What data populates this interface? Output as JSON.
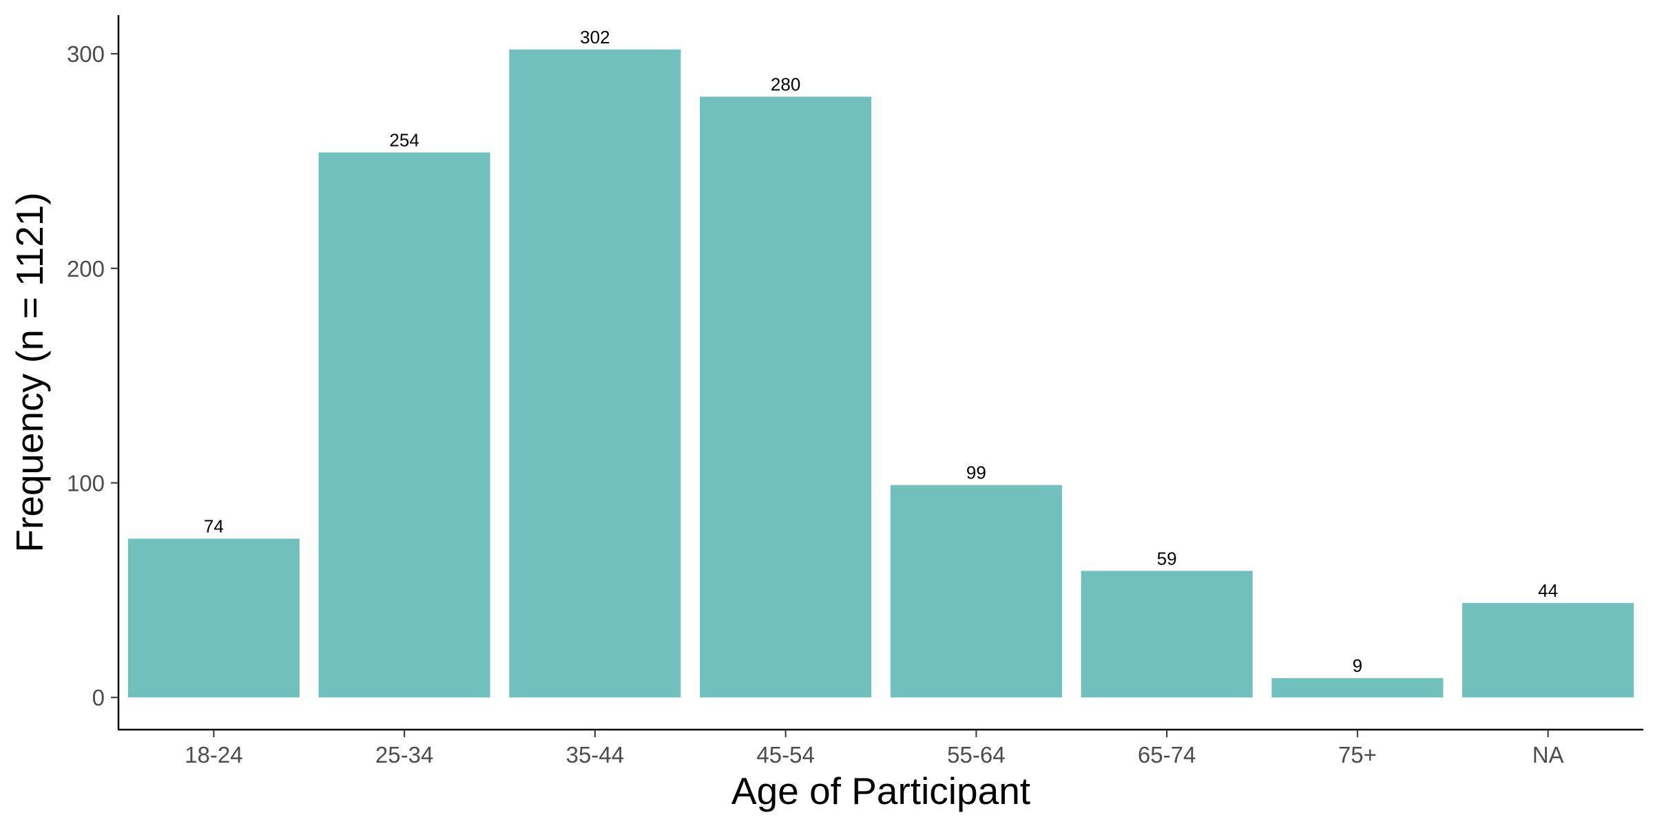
{
  "chart_data": {
    "type": "bar",
    "title": "",
    "xlabel": "Age of Participant",
    "ylabel": "Frequency (n = 1121)",
    "categories": [
      "18-24",
      "25-34",
      "35-44",
      "45-54",
      "55-64",
      "65-74",
      "75+",
      "NA"
    ],
    "values": [
      74,
      254,
      302,
      280,
      99,
      59,
      9,
      44
    ],
    "data_labels": [
      "74",
      "254",
      "302",
      "280",
      "99",
      "59",
      "9",
      "44"
    ],
    "yticks": [
      0,
      100,
      200,
      300
    ],
    "ylim": [
      -15,
      318
    ],
    "grid": false,
    "legend": "none",
    "bar_color": "#72c0bd"
  }
}
